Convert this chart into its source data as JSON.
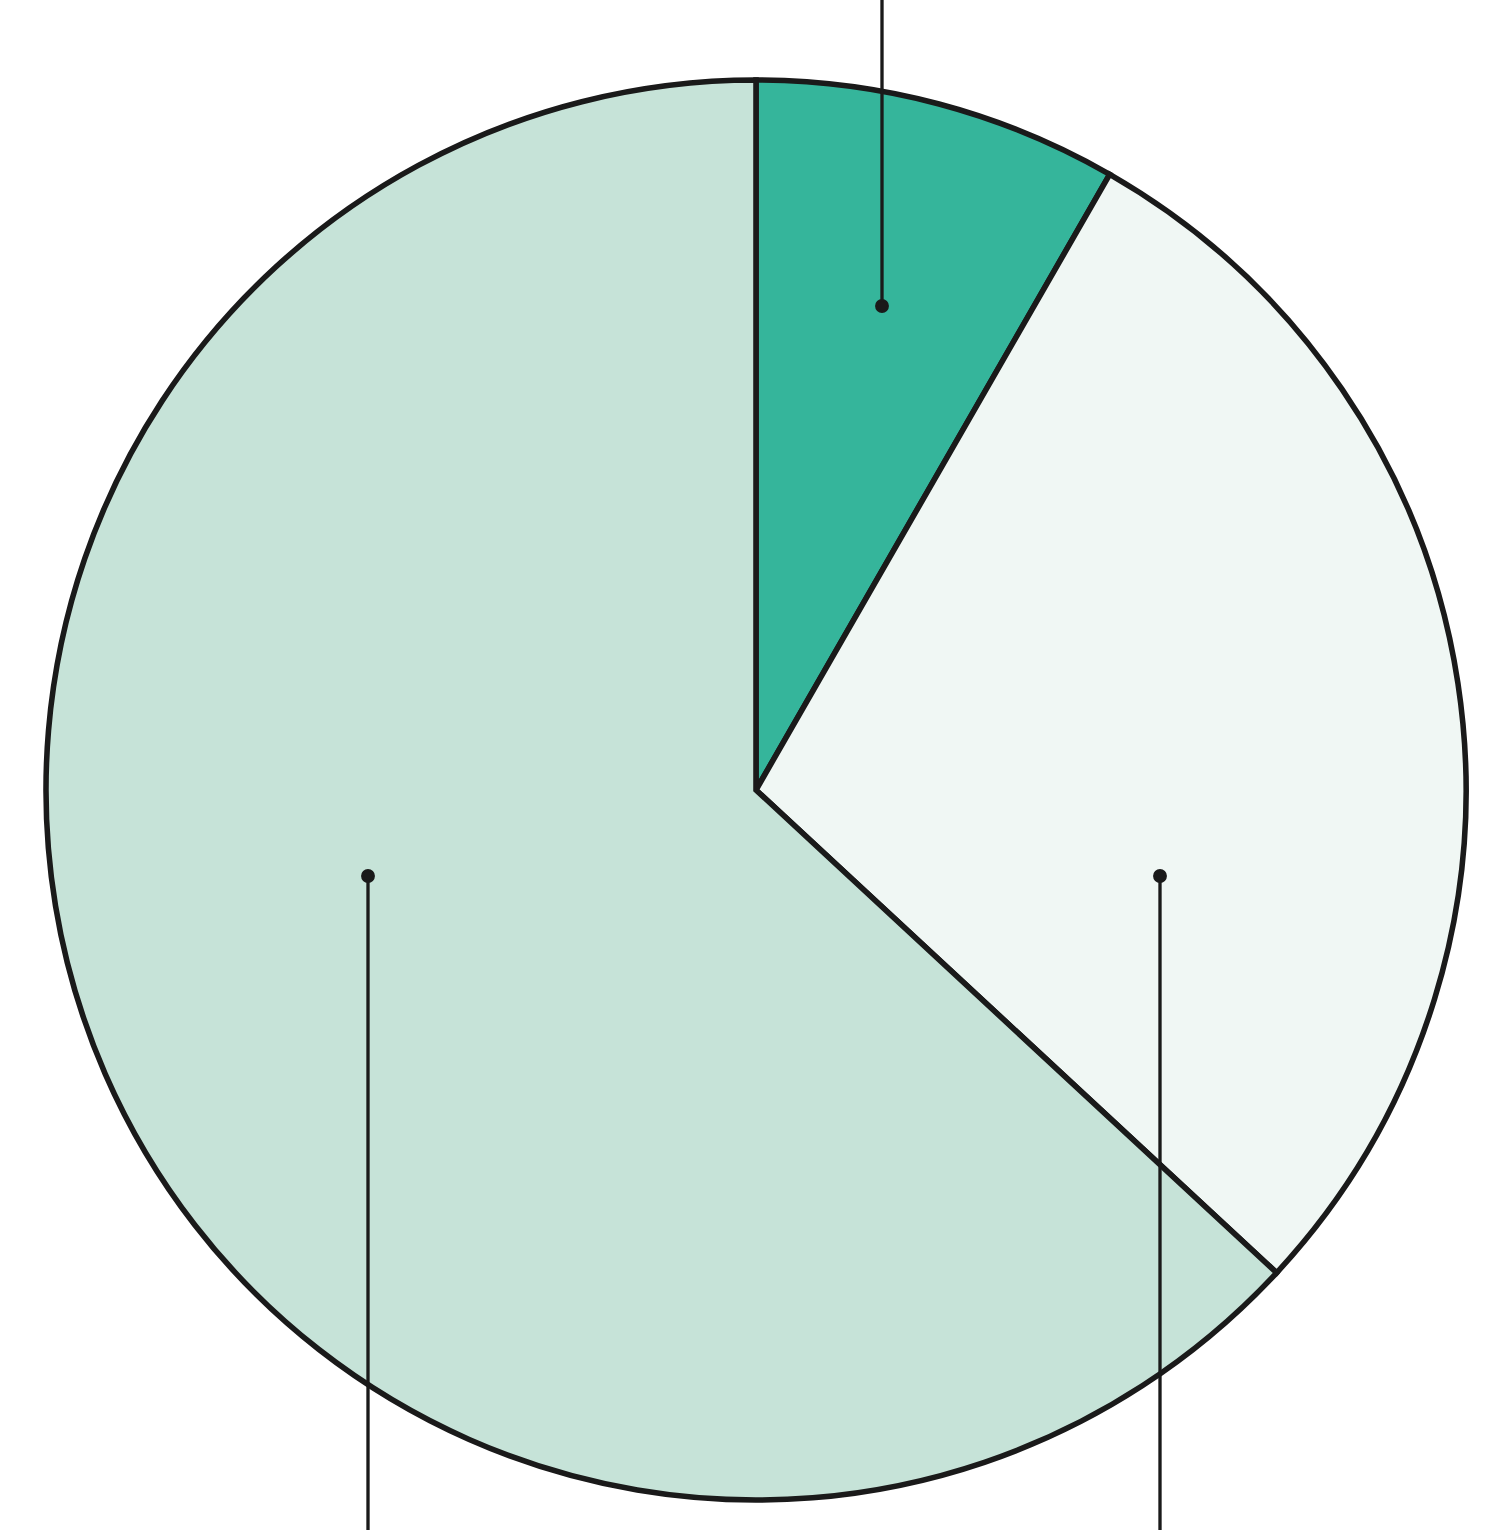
{
  "chart_data": {
    "type": "pie",
    "categories": [
      null,
      null,
      null
    ],
    "values": [
      8.3,
      28.6,
      63.1
    ],
    "colors": [
      "#35b59b",
      "#f0f7f4",
      "#c6e3d8"
    ]
  }
}
